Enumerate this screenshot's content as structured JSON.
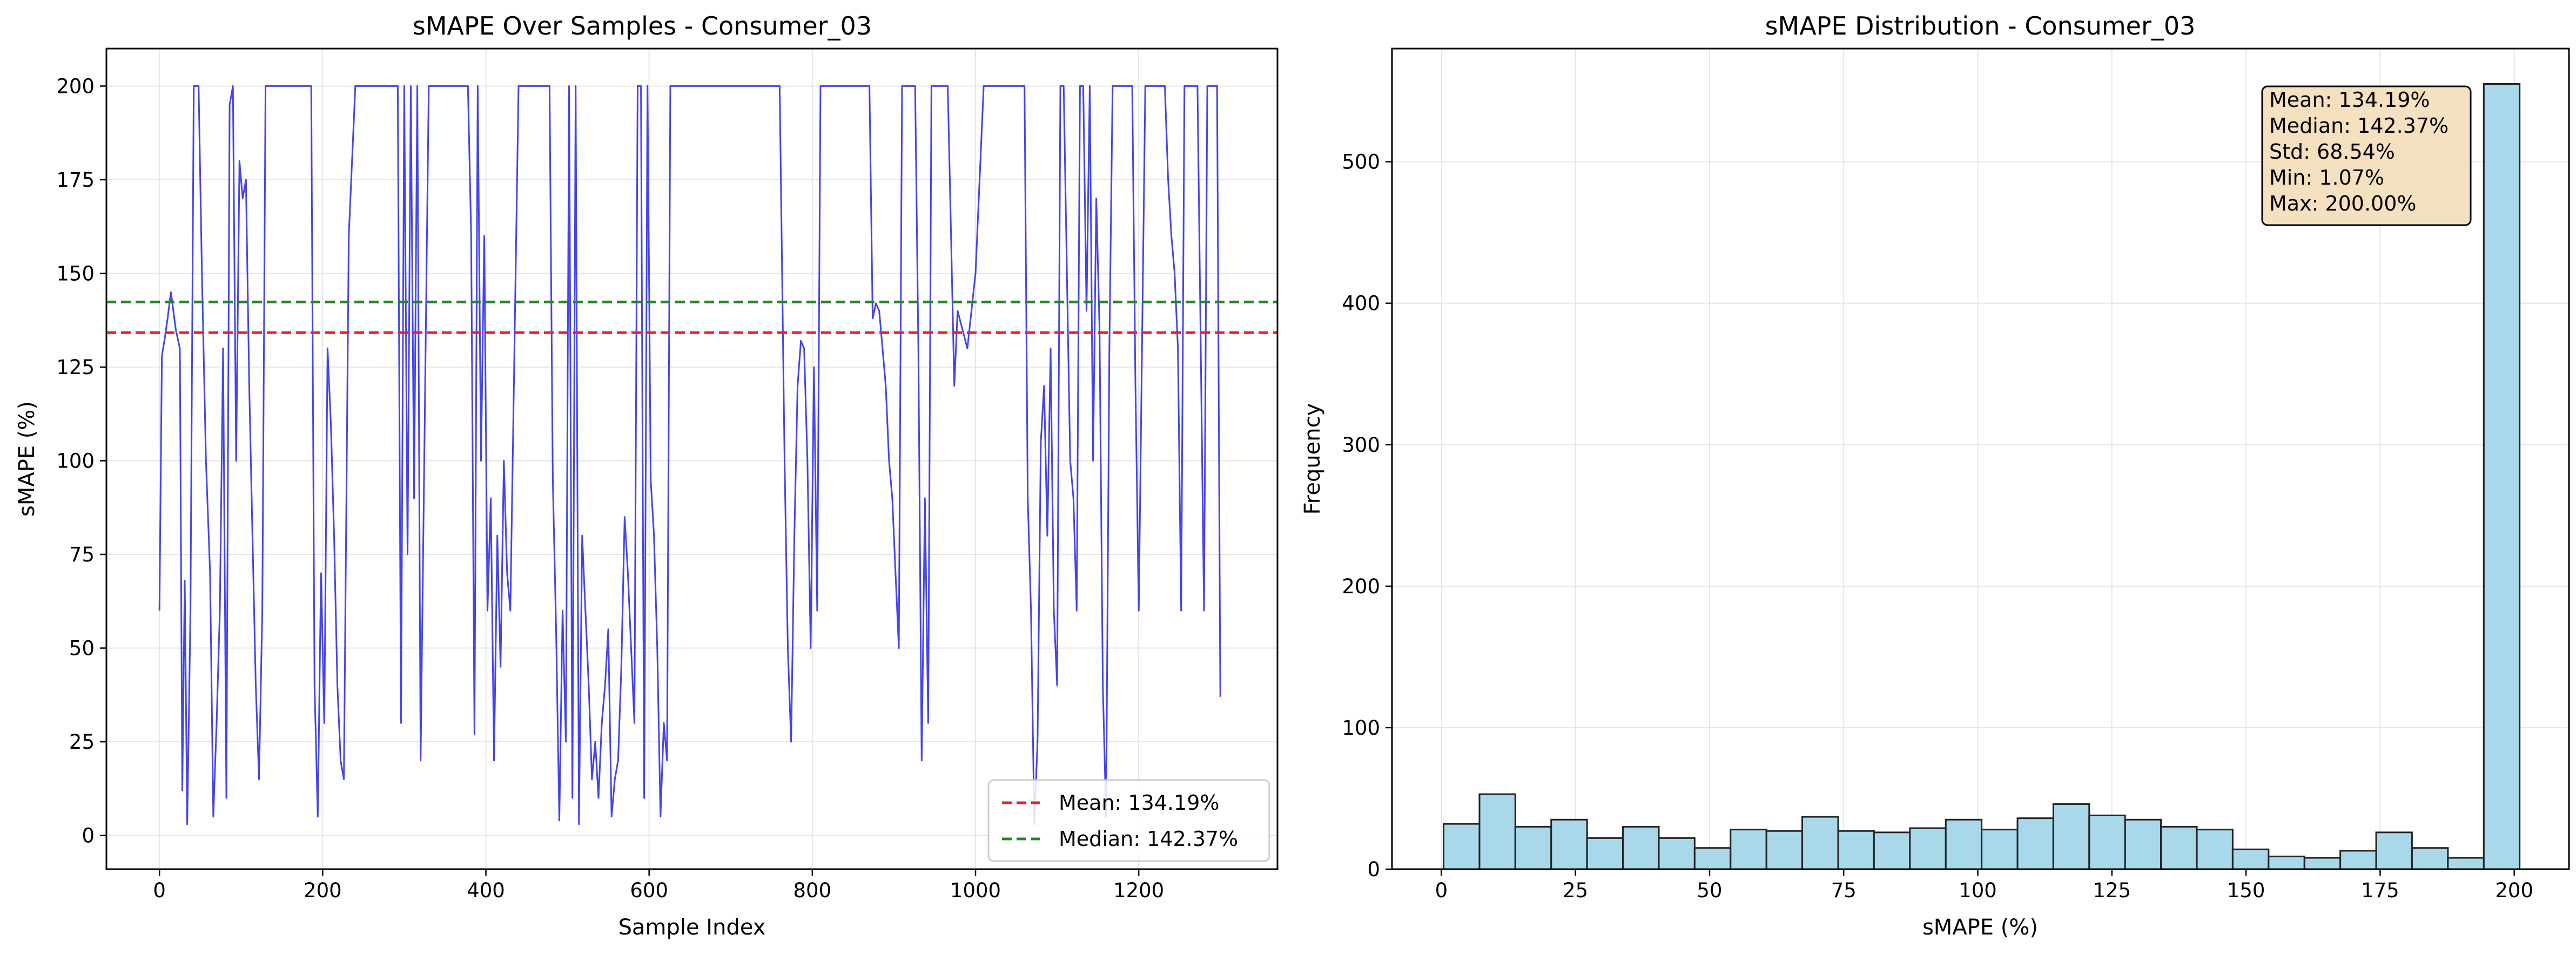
{
  "chart_data": [
    {
      "type": "line",
      "title": "sMAPE Over Samples - Consumer_03",
      "xlabel": "Sample Index",
      "ylabel": "sMAPE (%)",
      "xlim": [
        -65,
        1370
      ],
      "ylim": [
        -9,
        210
      ],
      "xticks": [
        0,
        200,
        400,
        600,
        800,
        1000,
        1200
      ],
      "yticks": [
        0,
        25,
        50,
        75,
        100,
        125,
        150,
        175,
        200
      ],
      "grid": true,
      "legend_position": "lower-right",
      "series": [
        {
          "name": "",
          "color": "#4444ee",
          "note": "sMAPE per sample, 1300 samples, values range 1.07 to 200; approximate trace",
          "x": [
            0,
            3,
            6,
            10,
            14,
            20,
            25,
            28,
            31,
            34,
            38,
            42,
            48,
            52,
            57,
            62,
            66,
            70,
            74,
            78,
            82,
            86,
            90,
            94,
            98,
            102,
            106,
            110,
            114,
            118,
            122,
            126,
            130,
            134,
            138,
            142,
            146,
            150,
            160,
            170,
            180,
            186,
            190,
            194,
            198,
            202,
            206,
            210,
            214,
            218,
            222,
            226,
            232,
            240,
            250,
            260,
            270,
            280,
            288,
            292,
            296,
            300,
            304,
            308,
            312,
            316,
            320,
            330,
            340,
            350,
            360,
            370,
            378,
            382,
            386,
            390,
            394,
            398,
            402,
            406,
            410,
            414,
            418,
            422,
            426,
            430,
            440,
            450,
            460,
            470,
            478,
            482,
            486,
            490,
            494,
            498,
            502,
            506,
            510,
            514,
            518,
            522,
            526,
            530,
            534,
            538,
            542,
            546,
            550,
            554,
            558,
            562,
            566,
            570,
            574,
            578,
            582,
            586,
            590,
            594,
            598,
            602,
            606,
            610,
            614,
            618,
            622,
            626,
            630,
            640,
            650,
            660,
            670,
            680,
            690,
            700,
            710,
            720,
            730,
            740,
            750,
            760,
            766,
            770,
            774,
            778,
            782,
            786,
            790,
            794,
            798,
            802,
            806,
            810,
            820,
            830,
            840,
            850,
            860,
            866,
            870,
            874,
            878,
            882,
            886,
            890,
            894,
            898,
            902,
            906,
            910,
            920,
            926,
            930,
            934,
            938,
            942,
            946,
            950,
            954,
            958,
            962,
            966,
            970,
            974,
            978,
            990,
            1000,
            1010,
            1020,
            1030,
            1040,
            1050,
            1056,
            1060,
            1064,
            1068,
            1072,
            1076,
            1080,
            1084,
            1088,
            1092,
            1096,
            1100,
            1104,
            1108,
            1112,
            1116,
            1120,
            1124,
            1128,
            1132,
            1136,
            1140,
            1144,
            1148,
            1152,
            1156,
            1160,
            1164,
            1168,
            1172,
            1176,
            1180,
            1184,
            1188,
            1192,
            1196,
            1200,
            1204,
            1208,
            1212,
            1216,
            1220,
            1224,
            1228,
            1232,
            1236,
            1240,
            1244,
            1248,
            1252,
            1256,
            1260,
            1264,
            1268,
            1272,
            1276,
            1280,
            1284,
            1288,
            1292,
            1296,
            1300
          ],
          "y": [
            60,
            128,
            132,
            138,
            145,
            135,
            130,
            12,
            68,
            3,
            60,
            200,
            200,
            150,
            100,
            70,
            5,
            30,
            60,
            130,
            10,
            195,
            200,
            100,
            180,
            170,
            175,
            120,
            80,
            40,
            15,
            60,
            200,
            200,
            200,
            200,
            200,
            200,
            200,
            200,
            200,
            200,
            40,
            5,
            70,
            30,
            130,
            110,
            80,
            40,
            20,
            15,
            160,
            200,
            200,
            200,
            200,
            200,
            200,
            200,
            30,
            200,
            75,
            200,
            90,
            200,
            20,
            200,
            200,
            200,
            200,
            200,
            200,
            160,
            27,
            200,
            100,
            160,
            60,
            90,
            20,
            80,
            45,
            100,
            70,
            60,
            200,
            200,
            200,
            200,
            200,
            95,
            55,
            4,
            60,
            25,
            200,
            10,
            200,
            3,
            80,
            60,
            40,
            15,
            25,
            10,
            30,
            40,
            55,
            5,
            15,
            20,
            45,
            85,
            70,
            50,
            30,
            200,
            200,
            10,
            200,
            95,
            80,
            50,
            5,
            30,
            20,
            200,
            200,
            200,
            200,
            200,
            200,
            200,
            200,
            200,
            200,
            200,
            200,
            200,
            200,
            200,
            100,
            50,
            25,
            80,
            120,
            132,
            130,
            100,
            50,
            125,
            60,
            200,
            200,
            200,
            200,
            200,
            200,
            200,
            200,
            138,
            142,
            140,
            130,
            120,
            100,
            90,
            70,
            50,
            200,
            200,
            200,
            130,
            20,
            90,
            30,
            200,
            200,
            200,
            200,
            200,
            200,
            160,
            120,
            140,
            130,
            150,
            200,
            200,
            200,
            200,
            200,
            200,
            200,
            90,
            60,
            3,
            25,
            105,
            120,
            80,
            130,
            60,
            40,
            200,
            200,
            150,
            100,
            90,
            60,
            200,
            200,
            140,
            200,
            100,
            170,
            135,
            40,
            5,
            130,
            200,
            200,
            200,
            200,
            200,
            200,
            200,
            120,
            60,
            130,
            200,
            200,
            200,
            200,
            200,
            200,
            200,
            175,
            160,
            150,
            130,
            60,
            200,
            200,
            200,
            200,
            200,
            130,
            60,
            200,
            200,
            200,
            200,
            37
          ]
        },
        {
          "name": "Mean: 134.19%",
          "color": "#ee2222",
          "style": "dashed",
          "y": 134.19
        },
        {
          "name": "Median: 142.37%",
          "color": "#228822",
          "style": "dashed",
          "y": 142.37
        }
      ]
    },
    {
      "type": "bar",
      "title": "sMAPE Distribution - Consumer_03",
      "xlabel": "sMAPE (%)",
      "ylabel": "Frequency",
      "xlim": [
        -9.2,
        210.2
      ],
      "ylim": [
        0,
        580
      ],
      "xticks": [
        0,
        25,
        50,
        75,
        100,
        125,
        150,
        175,
        200
      ],
      "yticks": [
        0,
        100,
        200,
        300,
        400,
        500
      ],
      "grid": true,
      "bar_color": "#a8d8ea",
      "edge_color": "#222222",
      "bin_edges": [
        0.42,
        7.11,
        13.79,
        20.48,
        27.17,
        33.85,
        40.54,
        47.22,
        53.91,
        60.6,
        67.28,
        73.97,
        80.65,
        87.34,
        94.03,
        100.71,
        107.4,
        114.08,
        120.77,
        127.46,
        134.14,
        140.83,
        147.51,
        154.2,
        160.89,
        167.57,
        174.26,
        180.94,
        187.63,
        194.32,
        201.0
      ],
      "values": [
        32,
        53,
        30,
        35,
        22,
        30,
        22,
        15,
        28,
        27,
        37,
        27,
        26,
        29,
        35,
        28,
        36,
        46,
        38,
        35,
        30,
        28,
        14,
        9,
        8,
        13,
        26,
        15,
        8,
        555
      ],
      "stats_box": {
        "lines": [
          "Mean: 134.19%",
          "Median: 142.37%",
          "Std: 68.54%",
          "Min: 1.07%",
          "Max: 200.00%"
        ],
        "position": "top-right",
        "facecolor": "#f5e0c0"
      }
    }
  ]
}
